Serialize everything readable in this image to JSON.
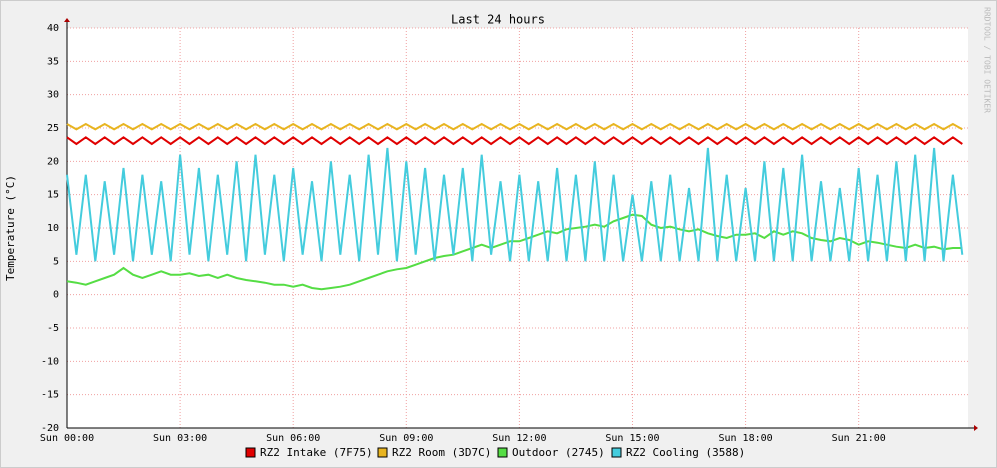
{
  "chart_data": {
    "type": "line",
    "title": "Last 24 hours",
    "ylabel": "Temperature (°C)",
    "watermark": "RRDTOOL / TOBI OETIKER",
    "xlim": [
      0,
      23.9
    ],
    "ylim": [
      -20,
      40
    ],
    "xticks": [
      {
        "value": 0,
        "label": "Sun 00:00"
      },
      {
        "value": 3,
        "label": "Sun 03:00"
      },
      {
        "value": 6,
        "label": "Sun 06:00"
      },
      {
        "value": 9,
        "label": "Sun 09:00"
      },
      {
        "value": 12,
        "label": "Sun 12:00"
      },
      {
        "value": 15,
        "label": "Sun 15:00"
      },
      {
        "value": 18,
        "label": "Sun 18:00"
      },
      {
        "value": 21,
        "label": "Sun 21:00"
      }
    ],
    "yticks": [
      -20,
      -15,
      -10,
      -5,
      0,
      5,
      10,
      15,
      20,
      25,
      30,
      35,
      40
    ],
    "grid": true,
    "x": [
      0,
      0.25,
      0.5,
      0.75,
      1,
      1.25,
      1.5,
      1.75,
      2,
      2.25,
      2.5,
      2.75,
      3,
      3.25,
      3.5,
      3.75,
      4,
      4.25,
      4.5,
      4.75,
      5,
      5.25,
      5.5,
      5.75,
      6,
      6.25,
      6.5,
      6.75,
      7,
      7.25,
      7.5,
      7.75,
      8,
      8.25,
      8.5,
      8.75,
      9,
      9.25,
      9.5,
      9.75,
      10,
      10.25,
      10.5,
      10.75,
      11,
      11.25,
      11.5,
      11.75,
      12,
      12.25,
      12.5,
      12.75,
      13,
      13.25,
      13.5,
      13.75,
      14,
      14.25,
      14.5,
      14.75,
      15,
      15.25,
      15.5,
      15.75,
      16,
      16.25,
      16.5,
      16.75,
      17,
      17.25,
      17.5,
      17.75,
      18,
      18.25,
      18.5,
      18.75,
      19,
      19.25,
      19.5,
      19.75,
      20,
      20.25,
      20.5,
      20.75,
      21,
      21.25,
      21.5,
      21.75,
      22,
      22.25,
      22.5,
      22.75,
      23,
      23.25,
      23.5,
      23.75
    ],
    "series": [
      {
        "name": "RZ2 Intake (7F75)",
        "color": "#e00000",
        "values": [
          23.6,
          22.6,
          23.6,
          22.6,
          23.6,
          22.6,
          23.6,
          22.6,
          23.6,
          22.6,
          23.6,
          22.6,
          23.6,
          22.6,
          23.6,
          22.6,
          23.6,
          22.6,
          23.6,
          22.6,
          23.6,
          22.6,
          23.6,
          22.6,
          23.6,
          22.6,
          23.6,
          22.6,
          23.6,
          22.6,
          23.6,
          22.6,
          23.6,
          22.6,
          23.6,
          22.6,
          23.6,
          22.6,
          23.6,
          22.6,
          23.6,
          22.6,
          23.6,
          22.6,
          23.6,
          22.6,
          23.6,
          22.6,
          23.6,
          22.6,
          23.6,
          22.6,
          23.6,
          22.6,
          23.6,
          22.6,
          23.6,
          22.6,
          23.6,
          22.6,
          23.6,
          22.6,
          23.6,
          22.6,
          23.6,
          22.6,
          23.6,
          22.6,
          23.6,
          22.6,
          23.6,
          22.6,
          23.6,
          22.6,
          23.6,
          22.6,
          23.6,
          22.6,
          23.6,
          22.6,
          23.6,
          22.6,
          23.6,
          22.6,
          23.6,
          22.6,
          23.6,
          22.6,
          23.6,
          22.6,
          23.6,
          22.6,
          23.6,
          22.6,
          23.6,
          22.6
        ]
      },
      {
        "name": "RZ2 Room (3D7C)",
        "color": "#e8b420",
        "values": [
          25.6,
          24.8,
          25.6,
          24.8,
          25.6,
          24.8,
          25.6,
          24.8,
          25.6,
          24.8,
          25.6,
          24.8,
          25.6,
          24.8,
          25.6,
          24.8,
          25.6,
          24.8,
          25.6,
          24.8,
          25.6,
          24.8,
          25.6,
          24.8,
          25.6,
          24.8,
          25.6,
          24.8,
          25.6,
          24.8,
          25.6,
          24.8,
          25.6,
          24.8,
          25.6,
          24.8,
          25.6,
          24.8,
          25.6,
          24.8,
          25.6,
          24.8,
          25.6,
          24.8,
          25.6,
          24.8,
          25.6,
          24.8,
          25.6,
          24.8,
          25.6,
          24.8,
          25.6,
          24.8,
          25.6,
          24.8,
          25.6,
          24.8,
          25.6,
          24.8,
          25.6,
          24.8,
          25.6,
          24.8,
          25.6,
          24.8,
          25.6,
          24.8,
          25.6,
          24.8,
          25.6,
          24.8,
          25.6,
          24.8,
          25.6,
          24.8,
          25.6,
          24.8,
          25.6,
          24.8,
          25.6,
          24.8,
          25.6,
          24.8,
          25.6,
          24.8,
          25.6,
          24.8,
          25.6,
          24.8,
          25.6,
          24.8,
          25.6,
          24.8,
          25.6,
          24.8
        ]
      },
      {
        "name": "Outdoor (2745)",
        "color": "#55dd44",
        "values": [
          2,
          1.8,
          1.5,
          2,
          2.5,
          3,
          4,
          3,
          2.5,
          3,
          3.5,
          3,
          3,
          3.2,
          2.8,
          3,
          2.5,
          3,
          2.5,
          2.2,
          2,
          1.8,
          1.5,
          1.5,
          1.2,
          1.5,
          1,
          0.8,
          1,
          1.2,
          1.5,
          2,
          2.5,
          3,
          3.5,
          3.8,
          4,
          4.5,
          5,
          5.5,
          5.8,
          6,
          6.5,
          7,
          7.5,
          7,
          7.5,
          8,
          8,
          8.5,
          9,
          9.5,
          9.2,
          9.8,
          10,
          10.2,
          10.5,
          10.2,
          11,
          11.5,
          12,
          11.8,
          10.5,
          10,
          10.2,
          9.8,
          9.5,
          9.8,
          9.2,
          8.8,
          8.5,
          9,
          9,
          9.2,
          8.5,
          9.5,
          9,
          9.5,
          9.2,
          8.5,
          8.2,
          8,
          8.5,
          8.2,
          7.5,
          8,
          7.8,
          7.5,
          7.2,
          7,
          7.5,
          7,
          7.2,
          6.8,
          7,
          7
        ]
      },
      {
        "name": "RZ2 Cooling (3588)",
        "color": "#44ccdd",
        "values": [
          18,
          6,
          18,
          5,
          17,
          6,
          19,
          5,
          18,
          6,
          17,
          5,
          21,
          6,
          19,
          5,
          18,
          6,
          20,
          5,
          21,
          6,
          18,
          5,
          19,
          6,
          17,
          5,
          20,
          6,
          18,
          5,
          21,
          6,
          22,
          5,
          20,
          6,
          19,
          5,
          18,
          6,
          19,
          5,
          21,
          6,
          17,
          5,
          18,
          5,
          17,
          5,
          19,
          5,
          18,
          5,
          20,
          5,
          18,
          5,
          15,
          5,
          17,
          5,
          18,
          5,
          16,
          5,
          22,
          5,
          18,
          5,
          16,
          5,
          20,
          5,
          19,
          5,
          21,
          5,
          17,
          5,
          16,
          5,
          19,
          5,
          18,
          5,
          20,
          5,
          21,
          5,
          22,
          5,
          18,
          6
        ]
      }
    ]
  }
}
